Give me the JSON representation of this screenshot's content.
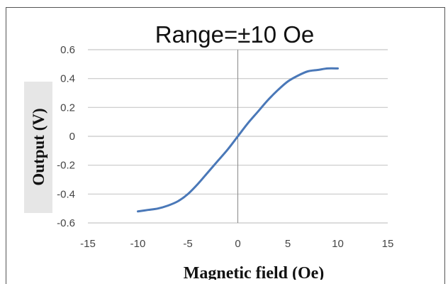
{
  "chart_data": {
    "type": "line",
    "title": "Range=±10 Oe",
    "xlabel": "Magnetic field (Oe)",
    "ylabel": "Output (V)",
    "xlim": [
      -15,
      15
    ],
    "ylim": [
      -0.6,
      0.6
    ],
    "x_ticks": [
      -15,
      -10,
      -5,
      0,
      5,
      10,
      15
    ],
    "y_ticks": [
      0.6,
      0.4,
      0.2,
      0,
      -0.2,
      -0.4,
      -0.6
    ],
    "x_tick_labels": [
      "-15",
      "-10",
      "-5",
      "0",
      "5",
      "10",
      "15"
    ],
    "y_tick_labels": [
      "0.6",
      "0.4",
      "0.2",
      "0",
      "-0.2",
      "-0.4",
      "-0.6"
    ],
    "grid": "horizontal",
    "legend": "none",
    "series": [
      {
        "color": "#4a78b8",
        "x": [
          -10,
          -9,
          -8,
          -7,
          -6,
          -5,
          -4,
          -3,
          -2,
          -1,
          0,
          1,
          2,
          3,
          4,
          5,
          6,
          7,
          8,
          9,
          10
        ],
        "y": [
          -0.52,
          -0.51,
          -0.5,
          -0.48,
          -0.45,
          -0.4,
          -0.33,
          -0.25,
          -0.17,
          -0.09,
          0.0,
          0.09,
          0.17,
          0.25,
          0.32,
          0.38,
          0.42,
          0.45,
          0.46,
          0.47,
          0.47
        ]
      }
    ]
  }
}
